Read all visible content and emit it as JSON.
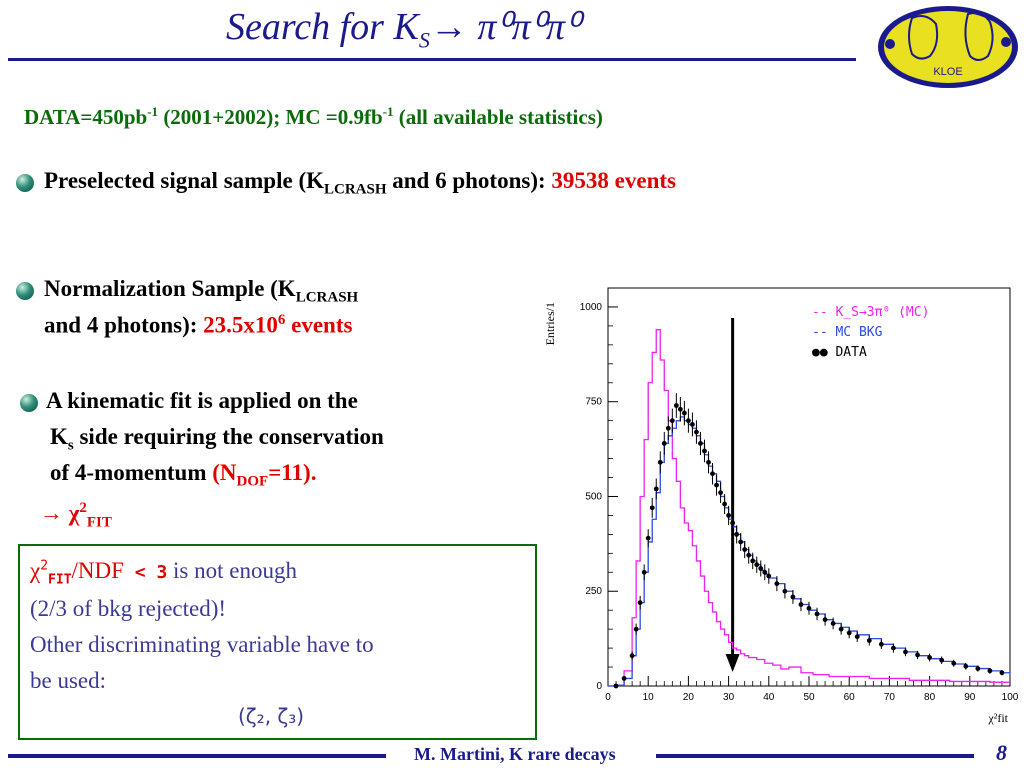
{
  "slide": {
    "title": {
      "text": "Search for K",
      "sub": "S",
      "arrow": "→",
      "pis": "π⁰π⁰π⁰"
    },
    "logo": {
      "text": "KLOE"
    },
    "data_line": {
      "p1": "DATA=450pb",
      "sup1": "-1",
      "p2": " (2001+2002); MC =0.9fb",
      "sup2": "-1",
      "p3": " (all available statistics)"
    },
    "bullet1": {
      "p1": "Preselected signal sample (K",
      "sub": "LCRASH",
      "p2": " and 6 photons): ",
      "value": "39538 events"
    },
    "bullet2": {
      "p1": "Normalization Sample (K",
      "sub": "LCRASH",
      "l2a": "and 4 photons): ",
      "value": "23.5x10",
      "sup": "6",
      "value_tail": " events"
    },
    "bullet3": {
      "l1": "A kinematic fit is applied on the",
      "l2a": "K",
      "l2sub": "s",
      "l2b": " side requiring the conservation",
      "l3a": "of 4-momentum ",
      "l3b": "(N",
      "l3sub": "DOF",
      "l3c": "=11).",
      "arrow": "→ ",
      "chi": "χ",
      "chisup": "2",
      "chisub": "FIT"
    },
    "box": {
      "chi": "χ",
      "chisup": "2",
      "chisub": "FIT",
      "ndf": "/NDF",
      "cut": " < 3",
      "rest1": " is not enough",
      "l2": "(2/3 of bkg rejected)!",
      "l3": "Other discriminating variable have to",
      "l4": "be used:",
      "l5": "(ζ₂, ζ₃)"
    },
    "footer": {
      "text": "M. Martini, K rare decays",
      "page": "8"
    },
    "colors": {
      "accent": "#1a1a8c",
      "green": "#0b6b0b",
      "red": "#e00000",
      "magenta": "#ee22ee",
      "blue": "#2a4ae0"
    }
  },
  "chart_data": {
    "type": "line",
    "ylabel": "Entries/1",
    "xlabel": "χ²fit",
    "xlim": [
      0,
      100
    ],
    "ylim": [
      0,
      1050
    ],
    "xticks": [
      0,
      10,
      20,
      30,
      40,
      50,
      60,
      70,
      80,
      90,
      100
    ],
    "yticks": [
      0,
      250,
      500,
      750,
      1000
    ],
    "legend": [
      "-- K_S→3π⁰ (MC)",
      "-- MC BKG",
      "●● DATA"
    ],
    "cut_arrow_x": 31,
    "series": [
      {
        "name": "K_S→3π⁰ (MC)",
        "style": "step",
        "color": "#ee22ee",
        "x": [
          0,
          2,
          4,
          6,
          7,
          8,
          9,
          10,
          11,
          12,
          13,
          14,
          15,
          16,
          17,
          18,
          19,
          20,
          21,
          22,
          23,
          24,
          25,
          26,
          27,
          28,
          29,
          30,
          31,
          32,
          33,
          34,
          35,
          37,
          39,
          41,
          43,
          45,
          48,
          51,
          55,
          60,
          65,
          70,
          75,
          80,
          85,
          90,
          95,
          100
        ],
        "y": [
          0,
          2,
          40,
          180,
          330,
          500,
          650,
          800,
          880,
          940,
          860,
          780,
          700,
          600,
          540,
          470,
          430,
          410,
          370,
          330,
          290,
          250,
          220,
          195,
          170,
          150,
          135,
          115,
          100,
          95,
          85,
          80,
          75,
          70,
          60,
          55,
          45,
          50,
          35,
          30,
          25,
          25,
          20,
          20,
          15,
          15,
          12,
          12,
          10,
          10
        ]
      },
      {
        "name": "MC BKG",
        "style": "step",
        "color": "#2a4ae0",
        "x": [
          0,
          2,
          4,
          6,
          7,
          8,
          9,
          10,
          11,
          12,
          13,
          14,
          15,
          16,
          17,
          18,
          19,
          20,
          21,
          22,
          23,
          24,
          25,
          26,
          27,
          28,
          29,
          30,
          31,
          32,
          33,
          34,
          35,
          36,
          37,
          38,
          39,
          40,
          42,
          44,
          46,
          48,
          50,
          52,
          54,
          56,
          58,
          60,
          62,
          65,
          68,
          71,
          74,
          77,
          80,
          83,
          86,
          89,
          92,
          95,
          98,
          100
        ],
        "y": [
          0,
          2,
          20,
          80,
          150,
          220,
          300,
          380,
          440,
          510,
          590,
          640,
          660,
          680,
          700,
          710,
          700,
          690,
          680,
          660,
          640,
          610,
          580,
          560,
          540,
          500,
          470,
          440,
          420,
          400,
          380,
          360,
          345,
          330,
          320,
          305,
          295,
          285,
          270,
          250,
          230,
          215,
          200,
          190,
          175,
          165,
          155,
          145,
          135,
          125,
          110,
          100,
          90,
          80,
          72,
          65,
          58,
          52,
          46,
          40,
          35,
          30
        ]
      }
    ],
    "data_points": {
      "name": "DATA",
      "x": [
        2,
        4,
        6,
        7,
        8,
        9,
        10,
        11,
        12,
        13,
        14,
        15,
        16,
        17,
        18,
        19,
        20,
        21,
        22,
        23,
        24,
        25,
        26,
        27,
        28,
        29,
        30,
        31,
        32,
        33,
        34,
        35,
        36,
        37,
        38,
        39,
        40,
        42,
        44,
        46,
        48,
        50,
        52,
        54,
        56,
        58,
        60,
        62,
        65,
        68,
        71,
        74,
        77,
        80,
        83,
        86,
        89,
        92,
        95,
        98
      ],
      "y": [
        0,
        20,
        80,
        150,
        220,
        300,
        390,
        470,
        520,
        590,
        640,
        680,
        700,
        740,
        730,
        720,
        700,
        690,
        670,
        640,
        620,
        590,
        560,
        530,
        510,
        480,
        450,
        430,
        400,
        380,
        360,
        345,
        330,
        320,
        310,
        300,
        290,
        270,
        250,
        235,
        215,
        205,
        190,
        175,
        165,
        150,
        140,
        130,
        120,
        110,
        100,
        90,
        82,
        75,
        68,
        60,
        52,
        46,
        40,
        35
      ]
    }
  }
}
